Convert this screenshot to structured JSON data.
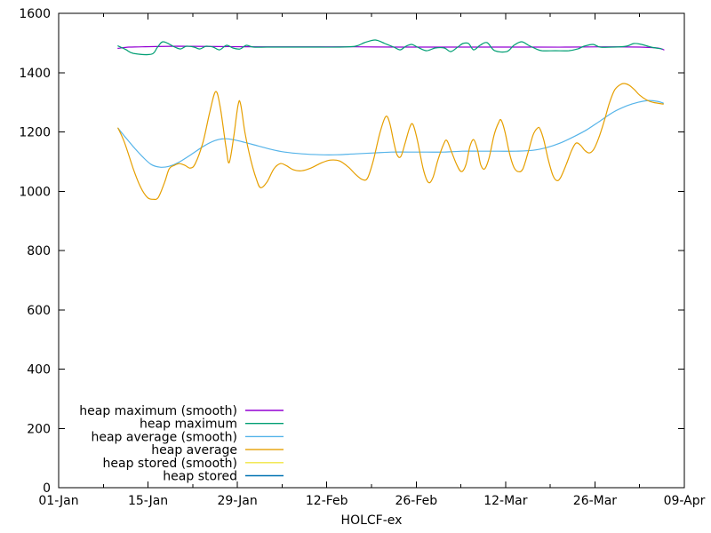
{
  "chart_data": {
    "type": "line",
    "title": "",
    "xlabel": "HOLCF-ex",
    "ylabel": "",
    "xlim_days": [
      0,
      98
    ],
    "ylim": [
      0,
      1600
    ],
    "grid": false,
    "legend_position": "inside bottom-left",
    "x_axis_unit": "days since 01-Jan",
    "xticks": [
      {
        "day": 0,
        "label": "01-Jan"
      },
      {
        "day": 14,
        "label": "15-Jan"
      },
      {
        "day": 28,
        "label": "29-Jan"
      },
      {
        "day": 42,
        "label": "12-Feb"
      },
      {
        "day": 56,
        "label": "26-Feb"
      },
      {
        "day": 70,
        "label": "12-Mar"
      },
      {
        "day": 84,
        "label": "26-Mar"
      },
      {
        "day": 98,
        "label": "09-Apr"
      }
    ],
    "minor_xticks_days": [
      7,
      21,
      35,
      49,
      63,
      77,
      91
    ],
    "yticks": [
      {
        "value": 0,
        "label": "0"
      },
      {
        "value": 200,
        "label": "200"
      },
      {
        "value": 400,
        "label": "400"
      },
      {
        "value": 600,
        "label": "600"
      },
      {
        "value": 800,
        "label": "800"
      },
      {
        "value": 1000,
        "label": "1000"
      },
      {
        "value": 1200,
        "label": "1200"
      },
      {
        "value": 1400,
        "label": "1400"
      },
      {
        "value": 1600,
        "label": "1600"
      }
    ],
    "series": [
      {
        "name": "heap maximum (smooth)",
        "color": "#9400d3",
        "smooth": true,
        "points": [
          [
            9.3,
            1482
          ],
          [
            11,
            1486
          ],
          [
            13.1,
            1487
          ],
          [
            18.7,
            1489
          ],
          [
            25,
            1488
          ],
          [
            32.6,
            1487
          ],
          [
            39,
            1487
          ],
          [
            46.5,
            1487
          ],
          [
            53,
            1486
          ],
          [
            60.4,
            1486
          ],
          [
            67,
            1486
          ],
          [
            74.3,
            1486
          ],
          [
            80,
            1486
          ],
          [
            85.5,
            1487
          ],
          [
            91,
            1486
          ],
          [
            93.8,
            1483
          ],
          [
            94.8,
            1477
          ]
        ]
      },
      {
        "name": "heap maximum",
        "color": "#009e73",
        "smooth": false,
        "points": [
          [
            9.3,
            1490
          ],
          [
            10.5,
            1478
          ],
          [
            11.7,
            1465
          ],
          [
            14.5,
            1462
          ],
          [
            15.5,
            1486
          ],
          [
            16.4,
            1504
          ],
          [
            18.2,
            1486
          ],
          [
            19.1,
            1480
          ],
          [
            20,
            1489
          ],
          [
            21.2,
            1486
          ],
          [
            22.1,
            1480
          ],
          [
            23.1,
            1489
          ],
          [
            24.2,
            1486
          ],
          [
            25.2,
            1477
          ],
          [
            26.3,
            1492
          ],
          [
            27.3,
            1483
          ],
          [
            28.4,
            1480
          ],
          [
            29.4,
            1492
          ],
          [
            30.5,
            1486
          ],
          [
            32.6,
            1486
          ],
          [
            35.4,
            1486
          ],
          [
            38.1,
            1486
          ],
          [
            40.9,
            1486
          ],
          [
            43.7,
            1486
          ],
          [
            46.5,
            1489
          ],
          [
            47.9,
            1501
          ],
          [
            49.6,
            1510
          ],
          [
            51.1,
            1498
          ],
          [
            52.5,
            1486
          ],
          [
            53.5,
            1477
          ],
          [
            54.4,
            1489
          ],
          [
            55.3,
            1495
          ],
          [
            56.2,
            1486
          ],
          [
            57.6,
            1474
          ],
          [
            59,
            1483
          ],
          [
            60.4,
            1483
          ],
          [
            61.4,
            1471
          ],
          [
            62.5,
            1486
          ],
          [
            63.3,
            1498
          ],
          [
            64.2,
            1498
          ],
          [
            65,
            1477
          ],
          [
            66,
            1492
          ],
          [
            67.1,
            1501
          ],
          [
            68.3,
            1474
          ],
          [
            70.2,
            1471
          ],
          [
            71.3,
            1492
          ],
          [
            72.5,
            1504
          ],
          [
            73.6,
            1492
          ],
          [
            74.8,
            1480
          ],
          [
            75.7,
            1474
          ],
          [
            77.8,
            1474
          ],
          [
            79.9,
            1474
          ],
          [
            81.3,
            1480
          ],
          [
            82.3,
            1489
          ],
          [
            83.7,
            1495
          ],
          [
            84.8,
            1486
          ],
          [
            86.9,
            1486
          ],
          [
            88.9,
            1489
          ],
          [
            90.1,
            1498
          ],
          [
            91.3,
            1495
          ],
          [
            92.8,
            1486
          ],
          [
            94.5,
            1480
          ]
        ]
      },
      {
        "name": "heap average (smooth)",
        "color": "#56b4e9",
        "smooth": true,
        "points": [
          [
            9.3,
            1213
          ],
          [
            10.3,
            1186
          ],
          [
            11.7,
            1150
          ],
          [
            13.1,
            1117
          ],
          [
            14.5,
            1090
          ],
          [
            15.9,
            1081
          ],
          [
            17.3,
            1084
          ],
          [
            18.7,
            1096
          ],
          [
            20.7,
            1123
          ],
          [
            22.8,
            1153
          ],
          [
            24.5,
            1171
          ],
          [
            25.9,
            1177
          ],
          [
            27.3,
            1174
          ],
          [
            29.1,
            1165
          ],
          [
            31.2,
            1153
          ],
          [
            33.3,
            1141
          ],
          [
            35.4,
            1132
          ],
          [
            38.1,
            1126
          ],
          [
            40.9,
            1123
          ],
          [
            43.7,
            1123
          ],
          [
            46.5,
            1126
          ],
          [
            49.3,
            1129
          ],
          [
            52.1,
            1132
          ],
          [
            54.8,
            1132
          ],
          [
            57.6,
            1132
          ],
          [
            60.4,
            1132
          ],
          [
            63.2,
            1135
          ],
          [
            66,
            1135
          ],
          [
            68.8,
            1135
          ],
          [
            71.6,
            1135
          ],
          [
            74.3,
            1138
          ],
          [
            76.4,
            1147
          ],
          [
            78.5,
            1162
          ],
          [
            80.6,
            1183
          ],
          [
            82.7,
            1207
          ],
          [
            84.8,
            1237
          ],
          [
            86.9,
            1267
          ],
          [
            89,
            1288
          ],
          [
            90.8,
            1300
          ],
          [
            92.4,
            1306
          ],
          [
            93.8,
            1303
          ],
          [
            94.7,
            1297
          ]
        ]
      },
      {
        "name": "heap average",
        "color": "#e69f00",
        "smooth": false,
        "points": [
          [
            9.3,
            1213
          ],
          [
            10.3,
            1165
          ],
          [
            11.7,
            1075
          ],
          [
            12.8,
            1015
          ],
          [
            13.9,
            979
          ],
          [
            14.8,
            973
          ],
          [
            15.6,
            979
          ],
          [
            16.6,
            1030
          ],
          [
            17.3,
            1075
          ],
          [
            18.1,
            1087
          ],
          [
            18.9,
            1093
          ],
          [
            19.8,
            1087
          ],
          [
            20.6,
            1078
          ],
          [
            21.4,
            1093
          ],
          [
            22.6,
            1165
          ],
          [
            23.7,
            1270
          ],
          [
            24.6,
            1336
          ],
          [
            25.3,
            1285
          ],
          [
            26.2,
            1150
          ],
          [
            26.7,
            1096
          ],
          [
            27.4,
            1180
          ],
          [
            28.1,
            1291
          ],
          [
            28.5,
            1294
          ],
          [
            29.2,
            1195
          ],
          [
            30.1,
            1105
          ],
          [
            30.9,
            1045
          ],
          [
            31.6,
            1012
          ],
          [
            32.6,
            1030
          ],
          [
            33.7,
            1075
          ],
          [
            34.7,
            1093
          ],
          [
            35.6,
            1087
          ],
          [
            36.8,
            1072
          ],
          [
            38.1,
            1069
          ],
          [
            39.5,
            1078
          ],
          [
            41.2,
            1096
          ],
          [
            42.6,
            1105
          ],
          [
            44,
            1102
          ],
          [
            45.4,
            1081
          ],
          [
            46.5,
            1057
          ],
          [
            47.6,
            1039
          ],
          [
            48.4,
            1045
          ],
          [
            49.3,
            1105
          ],
          [
            50.3,
            1195
          ],
          [
            51.2,
            1251
          ],
          [
            51.8,
            1234
          ],
          [
            52.5,
            1165
          ],
          [
            53,
            1123
          ],
          [
            53.6,
            1117
          ],
          [
            54.3,
            1165
          ],
          [
            55,
            1216
          ],
          [
            55.5,
            1225
          ],
          [
            56.2,
            1171
          ],
          [
            57.1,
            1075
          ],
          [
            57.9,
            1030
          ],
          [
            58.6,
            1045
          ],
          [
            59.4,
            1105
          ],
          [
            60.3,
            1159
          ],
          [
            60.8,
            1171
          ],
          [
            61.5,
            1135
          ],
          [
            62.4,
            1087
          ],
          [
            63.1,
            1066
          ],
          [
            63.8,
            1090
          ],
          [
            64.4,
            1150
          ],
          [
            65,
            1174
          ],
          [
            65.6,
            1141
          ],
          [
            66.1,
            1090
          ],
          [
            66.7,
            1075
          ],
          [
            67.4,
            1111
          ],
          [
            68.2,
            1189
          ],
          [
            68.9,
            1231
          ],
          [
            69.3,
            1240
          ],
          [
            69.9,
            1201
          ],
          [
            70.6,
            1129
          ],
          [
            71.3,
            1081
          ],
          [
            72,
            1066
          ],
          [
            72.7,
            1075
          ],
          [
            73.5,
            1129
          ],
          [
            74.3,
            1189
          ],
          [
            75,
            1213
          ],
          [
            75.4,
            1210
          ],
          [
            76,
            1171
          ],
          [
            76.7,
            1105
          ],
          [
            77.4,
            1054
          ],
          [
            78,
            1036
          ],
          [
            78.6,
            1045
          ],
          [
            79.5,
            1090
          ],
          [
            80.3,
            1135
          ],
          [
            81,
            1162
          ],
          [
            81.7,
            1156
          ],
          [
            82.4,
            1138
          ],
          [
            83.1,
            1129
          ],
          [
            83.8,
            1141
          ],
          [
            84.6,
            1180
          ],
          [
            85.5,
            1240
          ],
          [
            86.3,
            1300
          ],
          [
            87.1,
            1342
          ],
          [
            88,
            1360
          ],
          [
            88.7,
            1363
          ],
          [
            89.4,
            1357
          ],
          [
            90.2,
            1342
          ],
          [
            91,
            1324
          ],
          [
            92,
            1309
          ],
          [
            93,
            1300
          ],
          [
            93.8,
            1297
          ],
          [
            94.7,
            1294
          ]
        ]
      },
      {
        "name": "heap stored (smooth)",
        "color": "#f0e442",
        "smooth": true,
        "points": [],
        "note": "legend entry only; curve not visibly distinct in plot (coincides beneath the heap average curves)"
      },
      {
        "name": "heap stored",
        "color": "#0072b2",
        "smooth": false,
        "points": [],
        "note": "legend entry only; curve not visibly distinct in plot (coincides beneath the heap average curves)"
      }
    ]
  }
}
